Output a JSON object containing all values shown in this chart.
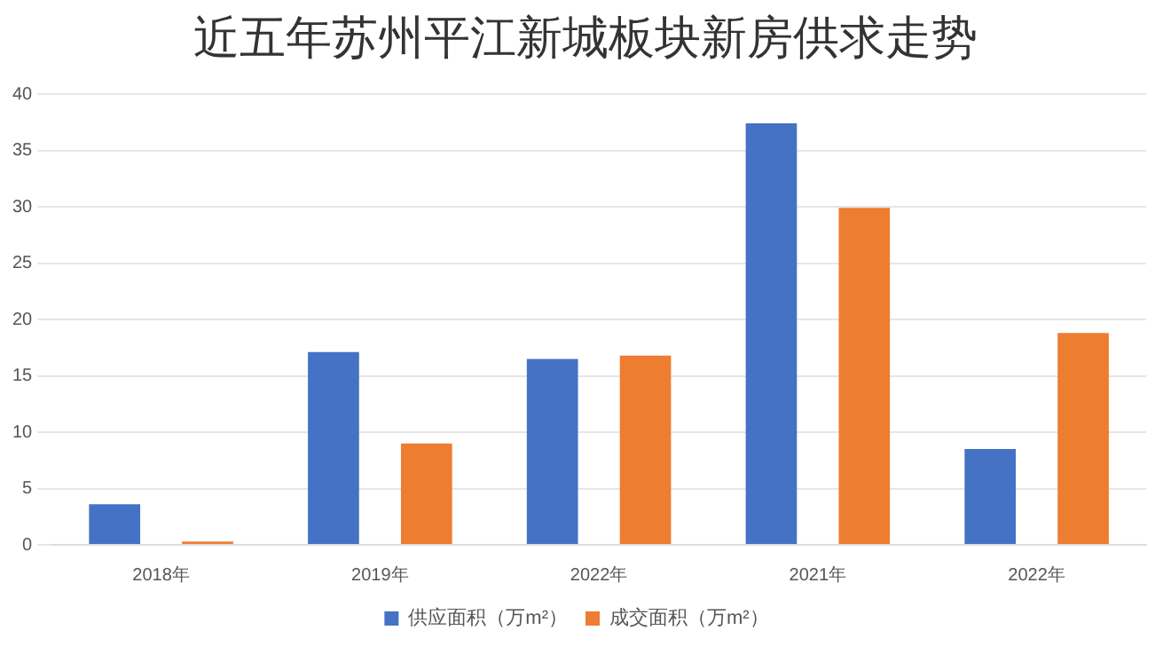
{
  "chart_data": {
    "type": "bar",
    "title": "近五年苏州平江新城板块新房供求走势",
    "categories": [
      "2018年",
      "2019年",
      "2022年",
      "2021年",
      "2022年"
    ],
    "series": [
      {
        "name": "供应面积（万m²）",
        "color": "#4472c4",
        "values": [
          3.6,
          17.1,
          16.5,
          37.4,
          8.5
        ]
      },
      {
        "name": "成交面积（万m²）",
        "color": "#ed7d31",
        "values": [
          0.3,
          9.0,
          16.8,
          29.9,
          18.8
        ]
      }
    ],
    "ylim": [
      0,
      40
    ],
    "yticks": [
      0,
      5,
      10,
      15,
      20,
      25,
      30,
      35,
      40
    ],
    "grid": "y",
    "legend": "bottom"
  }
}
